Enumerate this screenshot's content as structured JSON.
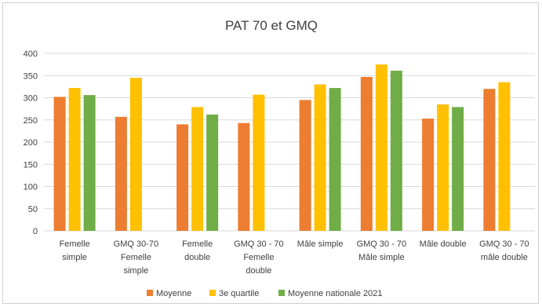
{
  "chart_data": {
    "type": "bar",
    "title": "PAT 70 et GMQ",
    "xlabel": "",
    "ylabel": "",
    "ylim": [
      0,
      400
    ],
    "yticks": [
      0,
      50,
      100,
      150,
      200,
      250,
      300,
      350,
      400
    ],
    "grid": true,
    "legend_position": "bottom",
    "categories": [
      [
        "Femelle",
        "simple"
      ],
      [
        "GMQ 30-70",
        "Femelle",
        "simple"
      ],
      [
        "Femelle",
        "double"
      ],
      [
        "GMQ 30 - 70",
        "Femelle",
        "double"
      ],
      [
        "Mâle simple"
      ],
      [
        "GMQ 30 - 70",
        "Mâle simple"
      ],
      [
        "Mâle double"
      ],
      [
        "GMQ 30 - 70",
        "mâle double"
      ]
    ],
    "series": [
      {
        "name": "Moyenne",
        "color": "#ED7D31",
        "values": [
          302,
          257,
          240,
          243,
          295,
          347,
          253,
          320
        ]
      },
      {
        "name": "3e quartile",
        "color": "#FFC000",
        "values": [
          322,
          345,
          279,
          307,
          330,
          375,
          285,
          335
        ]
      },
      {
        "name": "Moyenne nationale 2021",
        "color": "#70AD47",
        "values": [
          306,
          null,
          262,
          null,
          322,
          361,
          279,
          null
        ]
      }
    ]
  }
}
